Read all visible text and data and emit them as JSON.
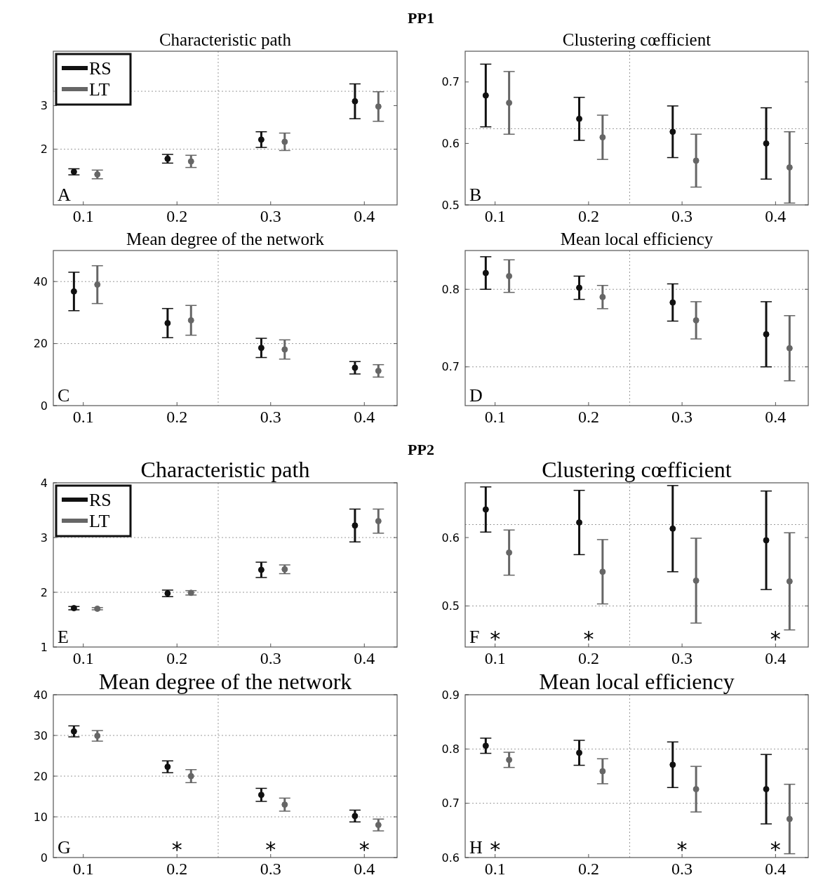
{
  "chart_data": [
    {
      "type": "scatter",
      "title": "Characteristic path",
      "annotations": [
        "A",
        "PP1"
      ],
      "xlim": [
        0.068,
        0.435
      ],
      "xticks": [
        0.1,
        0.2,
        0.3,
        0.4
      ],
      "ylim": [
        0.72,
        4.25
      ],
      "yticks": [
        2,
        3
      ],
      "marker": "circle",
      "legend": "top left",
      "ref_lines": [
        {
          "axis": "y",
          "value": 2,
          "color": "#999999",
          "line_style": "dotted"
        },
        {
          "axis": "y",
          "value": 3.33,
          "color": "#999999",
          "line_style": "dotted"
        },
        {
          "axis": "x",
          "value": 0.244,
          "color": "#999999",
          "line_style": "dotted"
        }
      ],
      "series": [
        {
          "name": "RS",
          "color": "#111111",
          "x": [
            0.09,
            0.19,
            0.29,
            0.39
          ],
          "values": [
            1.48,
            1.78,
            2.22,
            3.1
          ],
          "errors": [
            0.07,
            0.1,
            0.18,
            0.4
          ]
        },
        {
          "name": "LT",
          "color": "#666666",
          "x": [
            0.115,
            0.215,
            0.315,
            0.415
          ],
          "values": [
            1.42,
            1.72,
            2.17,
            2.98
          ],
          "errors": [
            0.1,
            0.14,
            0.2,
            0.34
          ]
        }
      ]
    },
    {
      "type": "scatter",
      "title": "Clustering cœfficient",
      "annotations": [
        "B"
      ],
      "xlim": [
        0.068,
        0.435
      ],
      "xticks": [
        0.1,
        0.2,
        0.3,
        0.4
      ],
      "ylim": [
        0.5,
        0.75
      ],
      "yticks": [
        0.5,
        0.6,
        0.7
      ],
      "marker": "circle",
      "ref_lines": [
        {
          "axis": "y",
          "value": 0.624,
          "color": "#999999",
          "line_style": "dotted"
        },
        {
          "axis": "x",
          "value": 0.244,
          "color": "#999999",
          "line_style": "dotted"
        }
      ],
      "series": [
        {
          "color": "#111111",
          "x": [
            0.09,
            0.19,
            0.29,
            0.39
          ],
          "values": [
            0.678,
            0.64,
            0.619,
            0.6
          ],
          "errors": [
            0.051,
            0.035,
            0.042,
            0.058
          ]
        },
        {
          "color": "#666666",
          "x": [
            0.115,
            0.215,
            0.315,
            0.415
          ],
          "values": [
            0.666,
            0.61,
            0.572,
            0.561
          ],
          "errors": [
            0.051,
            0.036,
            0.043,
            0.058
          ]
        }
      ]
    },
    {
      "type": "scatter",
      "title": "Mean degree of the network",
      "annotations": [
        "C"
      ],
      "xlim": [
        0.068,
        0.435
      ],
      "xticks": [
        0.1,
        0.2,
        0.3,
        0.4
      ],
      "ylim": [
        0,
        50
      ],
      "yticks": [
        0,
        20,
        40
      ],
      "marker": "circle",
      "ref_lines": [
        {
          "axis": "y",
          "value": 20,
          "color": "#999999",
          "line_style": "dotted"
        },
        {
          "axis": "y",
          "value": 40,
          "color": "#999999",
          "line_style": "dotted"
        },
        {
          "axis": "x",
          "value": 0.244,
          "color": "#999999",
          "line_style": "dotted"
        }
      ],
      "series": [
        {
          "color": "#111111",
          "x": [
            0.09,
            0.19,
            0.29,
            0.39
          ],
          "values": [
            36.8,
            26.6,
            18.6,
            12.2
          ],
          "errors": [
            6.2,
            4.7,
            3.1,
            2
          ]
        },
        {
          "color": "#666666",
          "x": [
            0.115,
            0.215,
            0.315,
            0.415
          ],
          "values": [
            39,
            27.5,
            18.1,
            11.2
          ],
          "errors": [
            6.1,
            4.8,
            3.1,
            2
          ]
        }
      ]
    },
    {
      "type": "scatter",
      "title": "Mean local efficiency",
      "annotations": [
        "D"
      ],
      "xlim": [
        0.068,
        0.435
      ],
      "xticks": [
        0.1,
        0.2,
        0.3,
        0.4
      ],
      "ylim": [
        0.65,
        0.85
      ],
      "yticks": [
        0.7,
        0.8
      ],
      "marker": "circle",
      "ref_lines": [
        {
          "axis": "y",
          "value": 0.7,
          "color": "#999999",
          "line_style": "dotted"
        },
        {
          "axis": "y",
          "value": 0.8,
          "color": "#999999",
          "line_style": "dotted"
        },
        {
          "axis": "x",
          "value": 0.244,
          "color": "#999999",
          "line_style": "dotted"
        }
      ],
      "series": [
        {
          "color": "#111111",
          "x": [
            0.09,
            0.19,
            0.29,
            0.39
          ],
          "values": [
            0.821,
            0.802,
            0.783,
            0.742
          ],
          "errors": [
            0.021,
            0.015,
            0.024,
            0.042
          ]
        },
        {
          "color": "#666666",
          "x": [
            0.115,
            0.215,
            0.315,
            0.415
          ],
          "values": [
            0.817,
            0.79,
            0.76,
            0.724
          ],
          "errors": [
            0.021,
            0.015,
            0.024,
            0.042
          ]
        }
      ]
    },
    {
      "type": "scatter",
      "title": "Characteristic path",
      "annotations": [
        "E",
        "PP2"
      ],
      "xlim": [
        0.068,
        0.435
      ],
      "xticks": [
        0.1,
        0.2,
        0.3,
        0.4
      ],
      "ylim": [
        1,
        4
      ],
      "yticks": [
        1,
        2,
        3,
        4
      ],
      "marker": "circle",
      "legend": "top left",
      "ref_lines": [
        {
          "axis": "y",
          "value": 2,
          "color": "#999999",
          "line_style": "dotted"
        },
        {
          "axis": "y",
          "value": 3,
          "color": "#999999",
          "line_style": "dotted"
        },
        {
          "axis": "x",
          "value": 0.244,
          "color": "#999999",
          "line_style": "dotted"
        }
      ],
      "series": [
        {
          "name": "RS",
          "color": "#111111",
          "x": [
            0.09,
            0.19,
            0.29,
            0.39
          ],
          "values": [
            1.71,
            1.98,
            2.41,
            3.22
          ],
          "errors": [
            0.03,
            0.06,
            0.14,
            0.3
          ]
        },
        {
          "name": "LT",
          "color": "#666666",
          "x": [
            0.115,
            0.215,
            0.315,
            0.415
          ],
          "values": [
            1.7,
            1.99,
            2.42,
            3.3
          ],
          "errors": [
            0.02,
            0.04,
            0.08,
            0.22
          ]
        }
      ]
    },
    {
      "type": "scatter",
      "title": "Clustering cœfficient",
      "annotations": [
        "F",
        "*",
        "*",
        "*"
      ],
      "xlim": [
        0.068,
        0.435
      ],
      "xticks": [
        0.1,
        0.2,
        0.3,
        0.4
      ],
      "ylim": [
        0.44,
        0.68
      ],
      "yticks": [
        0.5,
        0.6
      ],
      "marker": "circle",
      "ref_lines": [
        {
          "axis": "y",
          "value": 0.5,
          "color": "#999999",
          "line_style": "dotted"
        },
        {
          "axis": "y",
          "value": 0.619,
          "color": "#999999",
          "line_style": "dotted"
        },
        {
          "axis": "x",
          "value": 0.244,
          "color": "#999999",
          "line_style": "dotted"
        }
      ],
      "series": [
        {
          "color": "#111111",
          "x": [
            0.09,
            0.19,
            0.29,
            0.39
          ],
          "values": [
            0.641,
            0.622,
            0.613,
            0.596
          ],
          "errors": [
            0.033,
            0.047,
            0.063,
            0.072
          ]
        },
        {
          "color": "#666666",
          "x": [
            0.115,
            0.215,
            0.315,
            0.415
          ],
          "values": [
            0.578,
            0.55,
            0.537,
            0.536
          ],
          "errors": [
            0.033,
            0.047,
            0.062,
            0.071
          ]
        }
      ]
    },
    {
      "type": "scatter",
      "title": "Mean degree of the network",
      "annotations": [
        "G",
        "*",
        "*",
        "*"
      ],
      "xlim": [
        0.068,
        0.435
      ],
      "xticks": [
        0.1,
        0.2,
        0.3,
        0.4
      ],
      "ylim": [
        0,
        40
      ],
      "yticks": [
        0,
        10,
        20,
        30,
        40
      ],
      "marker": "circle",
      "ref_lines": [
        {
          "axis": "y",
          "value": 10,
          "color": "#999999",
          "line_style": "dotted"
        },
        {
          "axis": "y",
          "value": 20,
          "color": "#999999",
          "line_style": "dotted"
        },
        {
          "axis": "y",
          "value": 30,
          "color": "#999999",
          "line_style": "dotted"
        },
        {
          "axis": "x",
          "value": 0.244,
          "color": "#999999",
          "line_style": "dotted"
        }
      ],
      "series": [
        {
          "color": "#111111",
          "x": [
            0.09,
            0.19,
            0.29,
            0.39
          ],
          "values": [
            31,
            22.3,
            15.4,
            10.2
          ],
          "errors": [
            1.35,
            1.45,
            1.6,
            1.45
          ]
        },
        {
          "color": "#666666",
          "x": [
            0.115,
            0.215,
            0.315,
            0.415
          ],
          "values": [
            29.9,
            20,
            13,
            8
          ],
          "errors": [
            1.3,
            1.6,
            1.6,
            1.45
          ]
        }
      ]
    },
    {
      "type": "scatter",
      "title": "Mean local efficiency",
      "annotations": [
        "H",
        "*",
        "*",
        "*"
      ],
      "xlim": [
        0.068,
        0.435
      ],
      "xticks": [
        0.1,
        0.2,
        0.3,
        0.4
      ],
      "ylim": [
        0.6,
        0.9
      ],
      "yticks": [
        0.6,
        0.7,
        0.8,
        0.9
      ],
      "marker": "circle",
      "ref_lines": [
        {
          "axis": "y",
          "value": 0.7,
          "color": "#999999",
          "line_style": "dotted"
        },
        {
          "axis": "y",
          "value": 0.8,
          "color": "#999999",
          "line_style": "dotted"
        },
        {
          "axis": "x",
          "value": 0.244,
          "color": "#999999",
          "line_style": "dotted"
        }
      ],
      "series": [
        {
          "color": "#111111",
          "x": [
            0.09,
            0.19,
            0.29,
            0.39
          ],
          "values": [
            0.806,
            0.793,
            0.771,
            0.726
          ],
          "errors": [
            0.014,
            0.023,
            0.042,
            0.064
          ]
        },
        {
          "color": "#666666",
          "x": [
            0.115,
            0.215,
            0.315,
            0.415
          ],
          "values": [
            0.78,
            0.759,
            0.726,
            0.671
          ],
          "errors": [
            0.014,
            0.023,
            0.042,
            0.064
          ]
        }
      ]
    }
  ]
}
